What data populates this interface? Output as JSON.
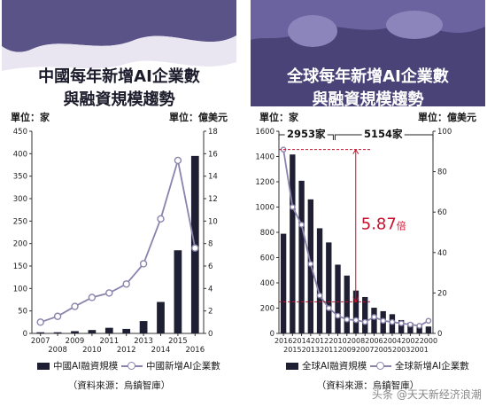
{
  "left": {
    "title_line1": "中國每年新增AI企業數",
    "title_line2": "與融資規模趨勢",
    "unit_left": "單位：家",
    "unit_right": "單位：億美元",
    "legend_bar": "中國AI融資規模",
    "legend_line": "中國新增AI企業數",
    "source": "（資料來源：烏鎮智庫）"
  },
  "right": {
    "title_line1": "全球每年新增AI企業數",
    "title_line2": "與融資規模趨勢",
    "unit_left": "單位：家",
    "unit_right": "單位：億美元",
    "legend_bar": "全球AI融資規模",
    "legend_line": "全球新增AI企業數",
    "source": "（資料來源：烏鎮智庫）",
    "annotation_2953": "2953家",
    "annotation_5154": "5154家",
    "annotation_ratio": "5.87",
    "annotation_ratio_unit": "倍"
  },
  "watermark": "头条 @天天新经济浪潮",
  "colors": {
    "bar": "#1f1f33",
    "line": "#8a84ad",
    "accent_red": "#c8102e",
    "header_dark": "#4a4377"
  },
  "chart_data": [
    {
      "type": "bar",
      "categories": [
        "2007",
        "2008",
        "2009",
        "2010",
        "2011",
        "2012",
        "2013",
        "2014",
        "2015",
        "2016"
      ],
      "series": [
        {
          "name": "中國AI融資規模",
          "axis": "right",
          "values": [
            0.1,
            0.1,
            0.2,
            0.3,
            0.5,
            0.4,
            1.1,
            2.8,
            7.4,
            15.8
          ]
        },
        {
          "name": "中國新增AI企業數",
          "axis": "left",
          "values": [
            25,
            38,
            60,
            80,
            90,
            110,
            155,
            255,
            385,
            190
          ]
        }
      ],
      "y_left": {
        "min": 0,
        "max": 450,
        "ticks": [
          "0",
          "50",
          "100",
          "150",
          "200",
          "250",
          "300",
          "350",
          "400",
          "450"
        ]
      },
      "y_right": {
        "min": 0,
        "max": 18,
        "ticks": [
          "0",
          "2",
          "4",
          "6",
          "8",
          "10",
          "12",
          "14",
          "16",
          "18"
        ]
      }
    },
    {
      "type": "bar",
      "categories": [
        "2016",
        "2015",
        "2014",
        "2013",
        "2012",
        "2011",
        "2010",
        "2009",
        "2008",
        "2007",
        "2006",
        "2005",
        "2004",
        "2003",
        "2002",
        "2001",
        "2000"
      ],
      "series": [
        {
          "name": "全球AI融資規模",
          "axis": "right",
          "values": [
            49.3,
            88.5,
            75.5,
            66.3,
            52,
            45,
            34,
            28.6,
            21.2,
            18,
            12.7,
            11,
            9.5,
            6.6,
            5.3,
            4.2,
            3.4
          ]
        },
        {
          "name": "全球新增AI企業數",
          "axis": "left",
          "values": [
            1455,
            1000,
            860,
            550,
            300,
            200,
            140,
            110,
            105,
            90,
            130,
            100,
            90,
            80,
            70,
            60,
            100
          ]
        }
      ],
      "y_left": {
        "min": 0,
        "max": 1600,
        "ticks": [
          "0",
          "200",
          "400",
          "600",
          "800",
          "1000",
          "1200",
          "1400",
          "1600"
        ]
      },
      "y_right": {
        "min": 0,
        "max": 100,
        "ticks": [
          "0",
          "20",
          "40",
          "60",
          "80",
          "100"
        ]
      }
    }
  ]
}
